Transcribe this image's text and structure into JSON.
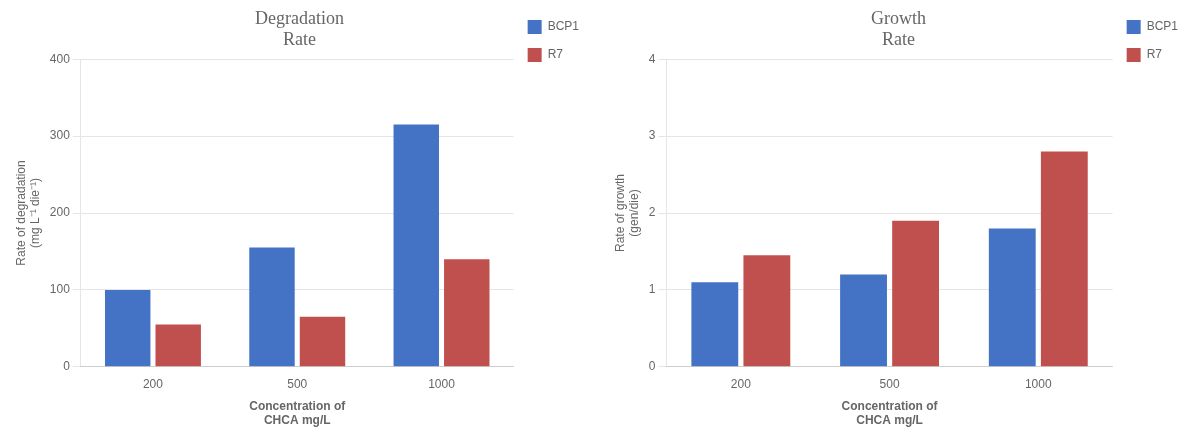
{
  "chart_data": [
    {
      "type": "bar",
      "title": "Degradation\nRate",
      "categories": [
        "200",
        "500",
        "1000"
      ],
      "series": [
        {
          "name": "BCP1",
          "color": "#4472C4",
          "values": [
            100,
            155,
            315
          ]
        },
        {
          "name": "R7",
          "color": "#C0504D",
          "values": [
            55,
            65,
            140
          ]
        }
      ],
      "xlabel": "Concentration of\nCHCA mg/L",
      "ylabel": "Rate of degradation\n(mg L⁻¹ die⁻¹)",
      "ylim": [
        0,
        400
      ],
      "yticks": [
        0,
        100,
        200,
        300,
        400
      ],
      "grid": true,
      "legend": "right"
    },
    {
      "type": "bar",
      "title": "Growth\nRate",
      "categories": [
        "200",
        "500",
        "1000"
      ],
      "series": [
        {
          "name": "BCP1",
          "color": "#4472C4",
          "values": [
            1.1,
            1.2,
            1.8
          ]
        },
        {
          "name": "R7",
          "color": "#C0504D",
          "values": [
            1.45,
            1.9,
            2.8
          ]
        }
      ],
      "xlabel": "Concentration of\nCHCA mg/L",
      "ylabel": "Rate of growth\n(gen/die)",
      "ylim": [
        0,
        4
      ],
      "yticks": [
        0,
        1,
        2,
        3,
        4
      ],
      "grid": true,
      "legend": "right"
    }
  ]
}
